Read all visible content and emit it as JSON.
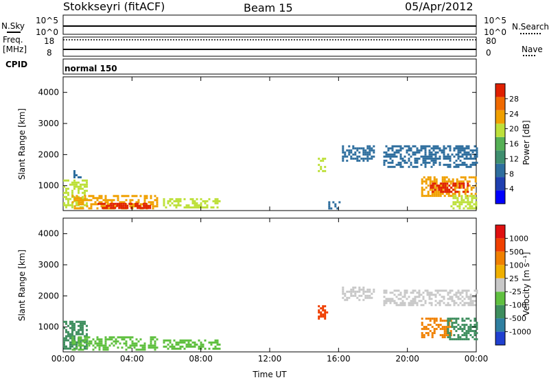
{
  "header": {
    "station": "Stokkseyri (fitACF)",
    "beam": "Beam 15",
    "date": "05/Apr/2012"
  },
  "panels": {
    "nsky_label": "N.Sky",
    "nsky_ticks": [
      "10^5",
      "10^0"
    ],
    "nsky_right_ticks": [
      "10^5",
      "10^0"
    ],
    "nsearch_label": "N.Search",
    "freq_label": "Freq.",
    "freq_unit": "[MHz]",
    "freq_ticks": [
      "18",
      "8"
    ],
    "nave_ticks": [
      "80",
      "0"
    ],
    "nave_label": "Nave",
    "cpid_label": "CPID",
    "cpid_value": "normal 150"
  },
  "chart_data": [
    {
      "type": "heatmap",
      "name": "power",
      "ylabel": "Slant Range [km]",
      "xlabel": "",
      "x_ticks": [
        "00:00",
        "04:00",
        "08:00",
        "12:00",
        "16:00",
        "20:00",
        "00:00"
      ],
      "y_ticks": [
        "1000",
        "2000",
        "3000",
        "4000"
      ],
      "xlim_hours": [
        0,
        24
      ],
      "ylim_km": [
        200,
        4500
      ],
      "colorbar_label": "Power [dB]",
      "colorbar_ticks": [
        "28",
        "24",
        "20",
        "16",
        "12",
        "8",
        "4"
      ],
      "colorbar_colors": [
        "#0000ff",
        "#1f3fb0",
        "#2e6e9e",
        "#3f8f6f",
        "#55b055",
        "#bde03a",
        "#f0a000",
        "#f06a00",
        "#e02000"
      ],
      "regions": [
        {
          "t0": 0.0,
          "t1": 1.4,
          "r0": 300,
          "r1": 1200,
          "level": 5
        },
        {
          "t0": 0.6,
          "t1": 1.0,
          "r0": 1300,
          "r1": 1500,
          "level": 2
        },
        {
          "t0": 0.5,
          "t1": 5.5,
          "r0": 300,
          "r1": 700,
          "level": 6
        },
        {
          "t0": 2.0,
          "t1": 5.2,
          "r0": 300,
          "r1": 450,
          "level": 8
        },
        {
          "t0": 5.8,
          "t1": 9.1,
          "r0": 300,
          "r1": 600,
          "level": 5
        },
        {
          "t0": 14.8,
          "t1": 15.2,
          "r0": 1500,
          "r1": 1900,
          "level": 5
        },
        {
          "t0": 15.4,
          "t1": 16.0,
          "r0": 300,
          "r1": 500,
          "level": 2
        },
        {
          "t0": 16.2,
          "t1": 18.0,
          "r0": 1800,
          "r1": 2300,
          "level": 2
        },
        {
          "t0": 18.6,
          "t1": 24.0,
          "r0": 1600,
          "r1": 2300,
          "level": 2
        },
        {
          "t0": 20.8,
          "t1": 24.0,
          "r0": 700,
          "r1": 1300,
          "level": 6
        },
        {
          "t0": 21.3,
          "t1": 23.5,
          "r0": 800,
          "r1": 1100,
          "level": 8
        },
        {
          "t0": 22.5,
          "t1": 24.0,
          "r0": 300,
          "r1": 700,
          "level": 5
        }
      ]
    },
    {
      "type": "heatmap",
      "name": "velocity",
      "ylabel": "Slant Range [km]",
      "xlabel": "Time UT",
      "x_ticks": [
        "00:00",
        "04:00",
        "08:00",
        "12:00",
        "16:00",
        "20:00",
        "00:00"
      ],
      "y_ticks": [
        "1000",
        "2000",
        "3000",
        "4000"
      ],
      "xlim_hours": [
        0,
        24
      ],
      "ylim_km": [
        200,
        4500
      ],
      "colorbar_label": "Velocity [m s⁻¹]",
      "colorbar_ticks": [
        "1000",
        "500",
        "100",
        "25",
        "-25",
        "-100",
        "-500",
        "-1000"
      ],
      "colorbar_colors": [
        "#2040d0",
        "#2f7fa0",
        "#3e8e5e",
        "#60c040",
        "#c8c8c8",
        "#f0b000",
        "#f08000",
        "#f04000",
        "#e01010"
      ],
      "regions": [
        {
          "t0": 0.0,
          "t1": 1.4,
          "r0": 300,
          "r1": 1200,
          "level": 2
        },
        {
          "t0": 0.5,
          "t1": 5.5,
          "r0": 300,
          "r1": 700,
          "level": 3
        },
        {
          "t0": 5.8,
          "t1": 9.1,
          "r0": 300,
          "r1": 600,
          "level": 3
        },
        {
          "t0": 14.8,
          "t1": 15.3,
          "r0": 1300,
          "r1": 1700,
          "level": 7
        },
        {
          "t0": 16.2,
          "t1": 18.0,
          "r0": 1900,
          "r1": 2300,
          "level": 4
        },
        {
          "t0": 18.6,
          "t1": 24.0,
          "r0": 1700,
          "r1": 2200,
          "level": 4
        },
        {
          "t0": 20.8,
          "t1": 22.5,
          "r0": 700,
          "r1": 1300,
          "level": 6
        },
        {
          "t0": 22.3,
          "t1": 24.0,
          "r0": 600,
          "r1": 1300,
          "level": 2
        }
      ]
    }
  ]
}
